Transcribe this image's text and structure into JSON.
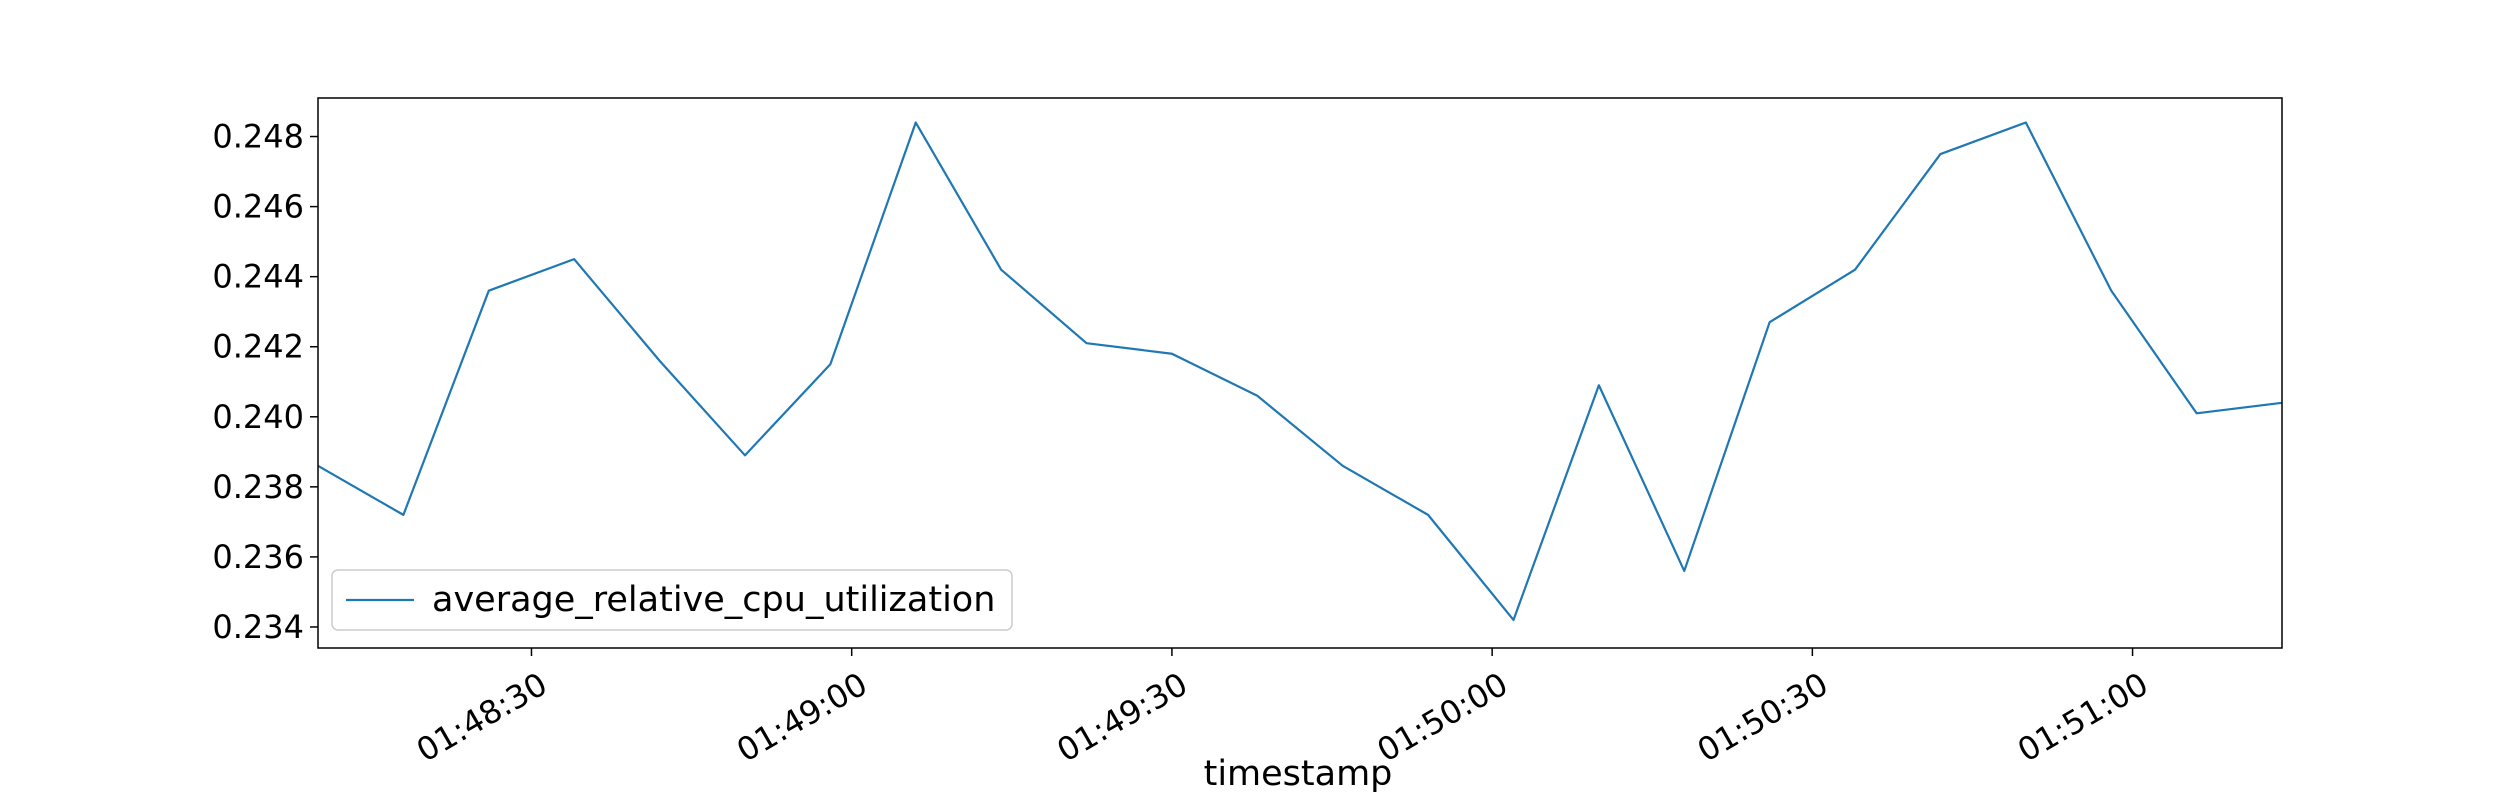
{
  "chart_data": {
    "type": "line",
    "title": "",
    "xlabel": "timestamp",
    "ylabel": "",
    "x_unit": "time (HH:MM:SS)",
    "xlim": [
      "01:48:10",
      "01:51:14"
    ],
    "ylim": [
      0.2334,
      0.2491
    ],
    "grid": false,
    "legend": {
      "position": "lower-left",
      "entries": [
        "average_relative_cpu_utilization"
      ]
    },
    "x_ticks": [
      "01:48:30",
      "01:49:00",
      "01:49:30",
      "01:50:00",
      "01:50:30",
      "01:51:00"
    ],
    "y_ticks": [
      "0.234",
      "0.236",
      "0.238",
      "0.240",
      "0.242",
      "0.244",
      "0.246",
      "0.248"
    ],
    "series": [
      {
        "name": "average_relative_cpu_utilization",
        "color": "#1f77b4",
        "x": [
          "01:48:10",
          "01:48:18",
          "01:48:26",
          "01:48:34",
          "01:48:42",
          "01:48:50",
          "01:48:58",
          "01:49:06",
          "01:49:14",
          "01:49:22",
          "01:49:30",
          "01:49:38",
          "01:49:46",
          "01:49:54",
          "01:50:02",
          "01:50:10",
          "01:50:18",
          "01:50:26",
          "01:50:34",
          "01:50:42",
          "01:50:50",
          "01:50:58",
          "01:51:06",
          "01:51:14"
        ],
        "values": [
          0.2386,
          0.2372,
          0.2436,
          0.2445,
          0.2416,
          0.2389,
          0.2415,
          0.2484,
          0.2442,
          0.2421,
          0.2418,
          0.2406,
          0.2386,
          0.2372,
          0.2342,
          0.2409,
          0.2356,
          0.2427,
          0.2442,
          0.2475,
          0.2484,
          0.2436,
          0.2401,
          0.2404
        ]
      }
    ]
  }
}
